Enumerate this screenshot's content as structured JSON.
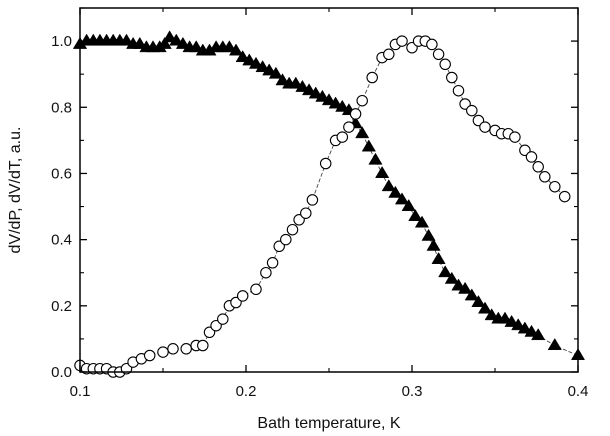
{
  "chart_data": {
    "type": "scatter",
    "xlabel": "Bath temperature, K",
    "ylabel": "dV/dP, dV/dT, a.u.",
    "xlim": [
      0.1,
      0.4
    ],
    "ylim": [
      0.0,
      1.1
    ],
    "x_ticks": [
      "0.1",
      "0.2",
      "0.3",
      "0.4"
    ],
    "y_ticks": [
      "0.0",
      "0.2",
      "0.4",
      "0.6",
      "0.8",
      "1.0"
    ],
    "x_tick_values": [
      0.1,
      0.2,
      0.3,
      0.4
    ],
    "y_tick_values": [
      0.0,
      0.2,
      0.4,
      0.6,
      0.8,
      1.0
    ],
    "grid": false,
    "legend": "none",
    "series": [
      {
        "marker": "filled-triangle",
        "color": "#000000",
        "points": [
          [
            0.1,
            0.99
          ],
          [
            0.104,
            1.0
          ],
          [
            0.108,
            1.0
          ],
          [
            0.112,
            1.0
          ],
          [
            0.116,
            1.0
          ],
          [
            0.12,
            1.0
          ],
          [
            0.124,
            1.0
          ],
          [
            0.128,
            1.0
          ],
          [
            0.132,
            0.99
          ],
          [
            0.136,
            0.99
          ],
          [
            0.14,
            0.98
          ],
          [
            0.144,
            0.98
          ],
          [
            0.148,
            0.98
          ],
          [
            0.151,
            0.99
          ],
          [
            0.154,
            1.01
          ],
          [
            0.158,
            1.0
          ],
          [
            0.162,
            0.99
          ],
          [
            0.166,
            0.98
          ],
          [
            0.17,
            0.98
          ],
          [
            0.174,
            0.97
          ],
          [
            0.178,
            0.97
          ],
          [
            0.182,
            0.98
          ],
          [
            0.186,
            0.98
          ],
          [
            0.19,
            0.98
          ],
          [
            0.194,
            0.97
          ],
          [
            0.198,
            0.95
          ],
          [
            0.202,
            0.94
          ],
          [
            0.206,
            0.93
          ],
          [
            0.21,
            0.92
          ],
          [
            0.214,
            0.91
          ],
          [
            0.218,
            0.9
          ],
          [
            0.222,
            0.88
          ],
          [
            0.226,
            0.87
          ],
          [
            0.23,
            0.87
          ],
          [
            0.234,
            0.86
          ],
          [
            0.238,
            0.85
          ],
          [
            0.242,
            0.84
          ],
          [
            0.246,
            0.83
          ],
          [
            0.25,
            0.82
          ],
          [
            0.254,
            0.81
          ],
          [
            0.258,
            0.8
          ],
          [
            0.262,
            0.79
          ],
          [
            0.266,
            0.75
          ],
          [
            0.27,
            0.72
          ],
          [
            0.274,
            0.68
          ],
          [
            0.278,
            0.64
          ],
          [
            0.282,
            0.6
          ],
          [
            0.286,
            0.56
          ],
          [
            0.29,
            0.54
          ],
          [
            0.294,
            0.52
          ],
          [
            0.298,
            0.5
          ],
          [
            0.302,
            0.47
          ],
          [
            0.306,
            0.45
          ],
          [
            0.31,
            0.41
          ],
          [
            0.313,
            0.38
          ],
          [
            0.316,
            0.34
          ],
          [
            0.32,
            0.3
          ],
          [
            0.324,
            0.28
          ],
          [
            0.328,
            0.26
          ],
          [
            0.332,
            0.25
          ],
          [
            0.336,
            0.23
          ],
          [
            0.34,
            0.21
          ],
          [
            0.344,
            0.19
          ],
          [
            0.348,
            0.17
          ],
          [
            0.352,
            0.16
          ],
          [
            0.356,
            0.16
          ],
          [
            0.36,
            0.15
          ],
          [
            0.364,
            0.14
          ],
          [
            0.368,
            0.13
          ],
          [
            0.372,
            0.12
          ],
          [
            0.376,
            0.11
          ],
          [
            0.386,
            0.08
          ],
          [
            0.4,
            0.05
          ]
        ]
      },
      {
        "marker": "open-circle",
        "color": "#000000",
        "points": [
          [
            0.1,
            0.02
          ],
          [
            0.104,
            0.01
          ],
          [
            0.108,
            0.01
          ],
          [
            0.112,
            0.01
          ],
          [
            0.116,
            0.01
          ],
          [
            0.12,
            0.0
          ],
          [
            0.124,
            0.0
          ],
          [
            0.128,
            0.01
          ],
          [
            0.132,
            0.03
          ],
          [
            0.137,
            0.04
          ],
          [
            0.142,
            0.05
          ],
          [
            0.15,
            0.06
          ],
          [
            0.156,
            0.07
          ],
          [
            0.164,
            0.07
          ],
          [
            0.17,
            0.08
          ],
          [
            0.174,
            0.08
          ],
          [
            0.178,
            0.12
          ],
          [
            0.182,
            0.14
          ],
          [
            0.186,
            0.16
          ],
          [
            0.19,
            0.2
          ],
          [
            0.194,
            0.21
          ],
          [
            0.198,
            0.23
          ],
          [
            0.206,
            0.25
          ],
          [
            0.212,
            0.3
          ],
          [
            0.216,
            0.33
          ],
          [
            0.22,
            0.38
          ],
          [
            0.224,
            0.4
          ],
          [
            0.228,
            0.43
          ],
          [
            0.232,
            0.46
          ],
          [
            0.236,
            0.48
          ],
          [
            0.24,
            0.52
          ],
          [
            0.248,
            0.63
          ],
          [
            0.254,
            0.7
          ],
          [
            0.258,
            0.71
          ],
          [
            0.262,
            0.74
          ],
          [
            0.266,
            0.78
          ],
          [
            0.27,
            0.82
          ],
          [
            0.276,
            0.89
          ],
          [
            0.282,
            0.95
          ],
          [
            0.286,
            0.96
          ],
          [
            0.29,
            0.99
          ],
          [
            0.294,
            1.0
          ],
          [
            0.3,
            0.98
          ],
          [
            0.304,
            1.0
          ],
          [
            0.308,
            1.0
          ],
          [
            0.312,
            0.99
          ],
          [
            0.316,
            0.96
          ],
          [
            0.32,
            0.93
          ],
          [
            0.324,
            0.89
          ],
          [
            0.328,
            0.85
          ],
          [
            0.332,
            0.81
          ],
          [
            0.336,
            0.79
          ],
          [
            0.34,
            0.76
          ],
          [
            0.344,
            0.74
          ],
          [
            0.35,
            0.73
          ],
          [
            0.354,
            0.72
          ],
          [
            0.358,
            0.72
          ],
          [
            0.362,
            0.71
          ],
          [
            0.368,
            0.67
          ],
          [
            0.372,
            0.65
          ],
          [
            0.376,
            0.62
          ],
          [
            0.38,
            0.59
          ],
          [
            0.386,
            0.56
          ],
          [
            0.392,
            0.53
          ]
        ]
      }
    ]
  }
}
